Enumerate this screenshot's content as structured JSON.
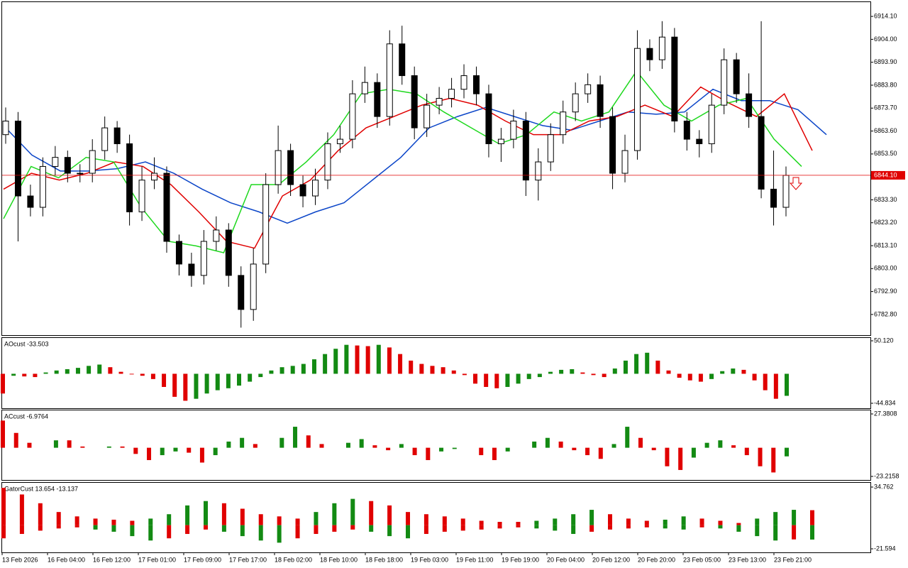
{
  "time_axis": {
    "labels": [
      "13 Feb 2026",
      "16 Feb 04:00",
      "16 Feb 12:00",
      "17 Feb 01:00",
      "17 Feb 09:00",
      "17 Feb 17:00",
      "18 Feb 02:00",
      "18 Feb 10:00",
      "18 Feb 18:00",
      "19 Feb 03:00",
      "19 Feb 11:00",
      "19 Feb 19:00",
      "20 Feb 04:00",
      "20 Feb 12:00",
      "20 Feb 20:00",
      "23 Feb 05:00",
      "23 Feb 13:00",
      "23 Feb 21:00"
    ]
  },
  "chart_data": [
    {
      "type": "candlestick",
      "ylim": [
        6773.7,
        6920.7
      ],
      "yticks": [
        {
          "value": 6914.1,
          "label": "6914.10"
        },
        {
          "value": 6904,
          "label": "6904.00"
        },
        {
          "value": 6893.9,
          "label": "6893.90"
        },
        {
          "value": 6883.8,
          "label": "6883.80"
        },
        {
          "value": 6873.7,
          "label": "6873.70"
        },
        {
          "value": 6863.6,
          "label": "6863.60"
        },
        {
          "value": 6853.5,
          "label": "6853.50"
        },
        {
          "value": 6833.3,
          "label": "6833.30"
        },
        {
          "value": 6823.2,
          "label": "6823.20"
        },
        {
          "value": 6813.1,
          "label": "6813.10"
        },
        {
          "value": 6803,
          "label": "6803.00"
        },
        {
          "value": 6792.9,
          "label": "6792.90"
        },
        {
          "value": 6782.8,
          "label": "6782.80"
        }
      ],
      "last_price": {
        "value": 6844.1,
        "label": "6844.10",
        "color": "#e00000"
      },
      "candles": [
        [
          6862,
          6874,
          6858,
          6868
        ],
        [
          6868,
          6872,
          6815,
          6835
        ],
        [
          6835,
          6840,
          6826,
          6830
        ],
        [
          6830,
          6852,
          6826,
          6848
        ],
        [
          6848,
          6857,
          6844,
          6852
        ],
        [
          6852,
          6855,
          6841,
          6845
        ],
        [
          6845,
          6849,
          6841,
          6845
        ],
        [
          6845,
          6860,
          6841,
          6855
        ],
        [
          6855,
          6870,
          6851,
          6865
        ],
        [
          6865,
          6868,
          6854,
          6858
        ],
        [
          6858,
          6862,
          6822,
          6828
        ],
        [
          6828,
          6848,
          6824,
          6842
        ],
        [
          6842,
          6852,
          6838,
          6845
        ],
        [
          6845,
          6848,
          6810,
          6815
        ],
        [
          6815,
          6818,
          6800,
          6805
        ],
        [
          6805,
          6810,
          6795,
          6800
        ],
        [
          6800,
          6820,
          6796,
          6815
        ],
        [
          6815,
          6826,
          6811,
          6820
        ],
        [
          6820,
          6823,
          6795,
          6800
        ],
        [
          6800,
          6804,
          6777,
          6785
        ],
        [
          6785,
          6812,
          6780,
          6805
        ],
        [
          6805,
          6845,
          6801,
          6840
        ],
        [
          6840,
          6866,
          6836,
          6855
        ],
        [
          6855,
          6858,
          6835,
          6840
        ],
        [
          6840,
          6844,
          6830,
          6835
        ],
        [
          6835,
          6847,
          6831,
          6842
        ],
        [
          6842,
          6863,
          6838,
          6858
        ],
        [
          6858,
          6866,
          6854,
          6860
        ],
        [
          6860,
          6886,
          6856,
          6880
        ],
        [
          6880,
          6892,
          6876,
          6885
        ],
        [
          6885,
          6889,
          6865,
          6870
        ],
        [
          6870,
          6908,
          6866,
          6902
        ],
        [
          6902,
          6910,
          6884,
          6888
        ],
        [
          6888,
          6892,
          6860,
          6865
        ],
        [
          6865,
          6880,
          6861,
          6875
        ],
        [
          6875,
          6883,
          6871,
          6878
        ],
        [
          6878,
          6887,
          6874,
          6882
        ],
        [
          6882,
          6893,
          6878,
          6888
        ],
        [
          6888,
          6892,
          6875,
          6880
        ],
        [
          6880,
          6884,
          6852,
          6858
        ],
        [
          6858,
          6865,
          6850,
          6860
        ],
        [
          6860,
          6873,
          6856,
          6868
        ],
        [
          6868,
          6872,
          6835,
          6842
        ],
        [
          6842,
          6856,
          6833,
          6850
        ],
        [
          6850,
          6867,
          6846,
          6862
        ],
        [
          6862,
          6877,
          6858,
          6872
        ],
        [
          6872,
          6885,
          6868,
          6880
        ],
        [
          6880,
          6889,
          6876,
          6884
        ],
        [
          6884,
          6888,
          6865,
          6870
        ],
        [
          6870,
          6874,
          6838,
          6845
        ],
        [
          6845,
          6862,
          6841,
          6855
        ],
        [
          6855,
          6908,
          6851,
          6900
        ],
        [
          6900,
          6904,
          6890,
          6895
        ],
        [
          6895,
          6912,
          6891,
          6905
        ],
        [
          6905,
          6909,
          6863,
          6868
        ],
        [
          6868,
          6872,
          6855,
          6860
        ],
        [
          6860,
          6864,
          6852,
          6858
        ],
        [
          6858,
          6880,
          6854,
          6875
        ],
        [
          6875,
          6900,
          6871,
          6895
        ],
        [
          6895,
          6898,
          6876,
          6880
        ],
        [
          6880,
          6889,
          6865,
          6870
        ],
        [
          6870,
          6912,
          6834,
          6838
        ],
        [
          6838,
          6855,
          6822,
          6830
        ],
        [
          6830,
          6848,
          6826,
          6844.1
        ]
      ],
      "series": [
        {
          "color": "#0b45c8",
          "values": [
            6866,
            6853,
            6846,
            6846,
            6847,
            6850,
            6845,
            6838,
            6832,
            6828,
            6823,
            6828,
            6832,
            6842,
            6852,
            6865,
            6870,
            6874,
            6870,
            6866,
            6864,
            6868,
            6872,
            6871,
            6872,
            6882,
            6877,
            6877,
            6873,
            6862
          ]
        },
        {
          "color": "#e00000",
          "values": [
            6838,
            6845,
            6842,
            6845,
            6850,
            6848,
            6840,
            6828,
            6815,
            6812,
            6835,
            6842,
            6855,
            6865,
            6870,
            6875,
            6878,
            6875,
            6868,
            6862,
            6862,
            6868,
            6870,
            6875,
            6870,
            6883,
            6876,
            6870,
            6880,
            6855
          ]
        },
        {
          "color": "#1ed81e",
          "values": [
            6825,
            6848,
            6843,
            6852,
            6850,
            6830,
            6815,
            6813,
            6810,
            6840,
            6840,
            6850,
            6862,
            6880,
            6882,
            6880,
            6872,
            6865,
            6858,
            6862,
            6872,
            6868,
            6872,
            6890,
            6875,
            6868,
            6875,
            6878,
            6860,
            6848
          ]
        }
      ]
    },
    {
      "type": "histogram",
      "title": "AOcust -33.503",
      "up_color": "#138a13",
      "down_color": "#e00000",
      "ylim": [
        -52.39,
        54.44
      ],
      "yticks": [
        {
          "value": 50.12,
          "label": "50.120"
        },
        -44.834
      ],
      "values": [
        -30,
        -3,
        -4,
        -5,
        2,
        5,
        7,
        9,
        12,
        14,
        10,
        3,
        -1,
        -3,
        -8,
        -20,
        -35,
        -41,
        -38,
        -30,
        -25,
        -22,
        -18,
        -12,
        -5,
        5,
        10,
        12,
        15,
        22,
        30,
        38,
        44,
        43,
        42,
        44,
        40,
        30,
        20,
        15,
        12,
        10,
        5,
        -2,
        -15,
        -20,
        -22,
        -20,
        -15,
        -8,
        -5,
        3,
        6,
        7,
        2,
        -2,
        -5,
        8,
        20,
        30,
        32,
        20,
        5,
        -6,
        -10,
        -12,
        -8,
        4,
        8,
        6,
        -10,
        -25,
        -38,
        -33.503
      ]
    },
    {
      "type": "histogram",
      "title": "ACcust -6.9764",
      "up_color": "#138a13",
      "down_color": "#e00000",
      "ylim": [
        -26.09,
        30.26
      ],
      "yticks": [
        27.3808,
        -23.2158
      ],
      "values": [
        22,
        12,
        4,
        0,
        6,
        6,
        1,
        0,
        1,
        1,
        -5,
        -10,
        -6,
        -3,
        -4,
        -12,
        -6,
        5,
        8,
        3,
        0,
        8,
        17,
        10,
        3,
        0,
        4,
        7,
        2,
        -2,
        3,
        -6,
        -10,
        -3,
        -1,
        0,
        -6,
        -10,
        -3,
        0,
        5,
        8,
        5,
        -2,
        -6,
        -9,
        3,
        17,
        8,
        -2,
        -15,
        -18,
        -8,
        4,
        6,
        2,
        -6,
        -15,
        -20,
        -6.9764
      ]
    },
    {
      "type": "gator",
      "title": "GatorCust 13.654 -13.137",
      "up_color": "#138a13",
      "down_color": "#e00000",
      "ylim": [
        -24.83,
        38.65
      ],
      "yticks": [
        34.762,
        -21.594
      ],
      "upper": [
        34,
        28,
        20,
        12,
        8,
        6,
        5,
        4,
        6,
        10,
        18,
        22,
        20,
        15,
        10,
        8,
        6,
        12,
        20,
        24,
        22,
        18,
        12,
        10,
        8,
        6,
        4,
        3,
        3,
        4,
        6,
        10,
        14,
        10,
        6,
        4,
        5,
        8,
        6,
        4,
        2,
        6,
        12,
        14,
        13.654
      ],
      "lower": [
        -12,
        -8,
        -5,
        -3,
        -2,
        -4,
        -6,
        -10,
        -14,
        -12,
        -8,
        -4,
        -6,
        -10,
        -14,
        -16,
        -12,
        -8,
        -6,
        -4,
        -6,
        -10,
        -12,
        -8,
        -6,
        -5,
        -4,
        -3,
        -2,
        -3,
        -5,
        -8,
        -6,
        -4,
        -3,
        -2,
        -3,
        -4,
        -2,
        -3,
        -6,
        -10,
        -14,
        -13,
        -13.137
      ]
    }
  ]
}
